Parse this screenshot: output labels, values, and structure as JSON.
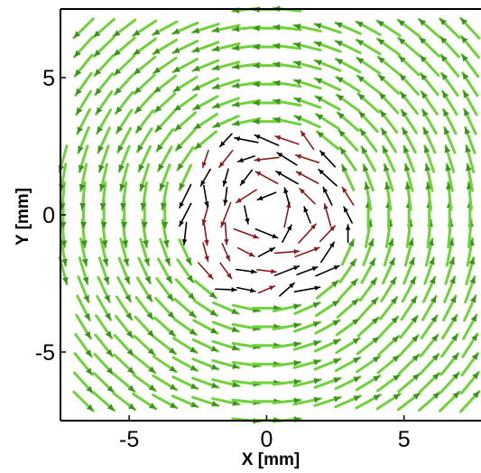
{
  "chart_data": {
    "type": "quiver",
    "xlabel": "X [mm]",
    "ylabel": "Y [mm]",
    "xlim": [
      -7.5,
      7.8
    ],
    "ylim": [
      -7.5,
      7.5
    ],
    "x_ticks": [
      -5,
      0,
      5
    ],
    "y_ticks": [
      -5,
      0,
      5
    ],
    "x_tick_labels": [
      "-5",
      "0",
      "5"
    ],
    "y_tick_labels": [
      "-5",
      "0",
      "5"
    ],
    "grid": false,
    "field": {
      "description": "rotational (vortex) velocity field centered at origin, counter-clockwise",
      "grid_spacing_x": 0.74,
      "grid_spacing_y": 0.68,
      "center": [
        0.0,
        0.0
      ],
      "core_radius_mm": 2.0
    },
    "series": [
      {
        "color": "#6fd23a"
      },
      {
        "color": "#000000"
      },
      {
        "color": "#8b1a1a"
      }
    ]
  }
}
